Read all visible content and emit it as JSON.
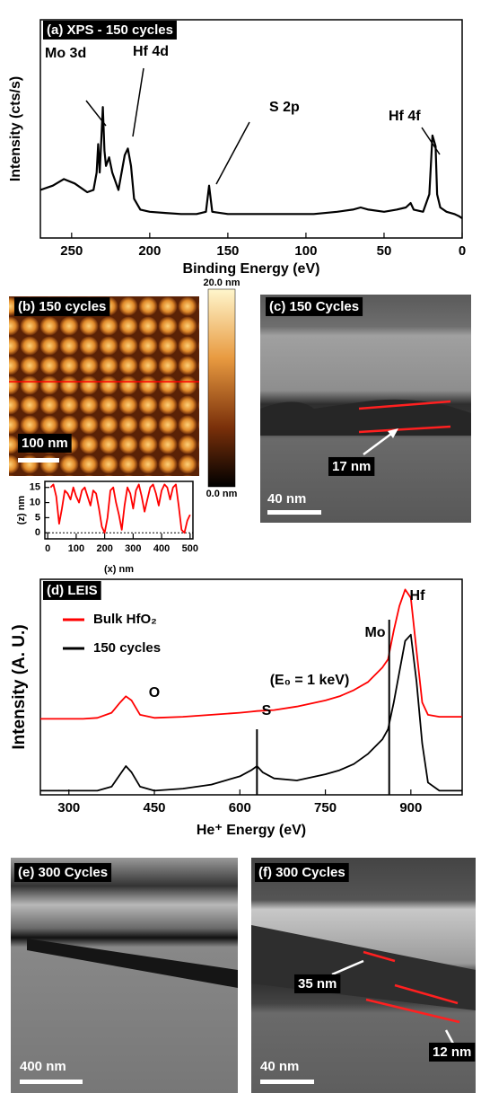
{
  "chart_data": [
    {
      "type": "line",
      "title": "(a) XPS - 150 cycles",
      "x_label": "Binding Energy (eV)",
      "y_label": "Intensity (cts/s)",
      "x": [
        270,
        262,
        255,
        248,
        240,
        236,
        234,
        233,
        232,
        231,
        230,
        229,
        228,
        226,
        224,
        220,
        216,
        214,
        212,
        210,
        206,
        200,
        190,
        180,
        170,
        164,
        162,
        160,
        150,
        130,
        110,
        95,
        80,
        70,
        65,
        60,
        50,
        42,
        36,
        33,
        31,
        25,
        21,
        19,
        17,
        16,
        14,
        10,
        5,
        2,
        0
      ],
      "values": [
        22,
        24,
        27,
        25,
        21,
        22,
        30,
        43,
        30,
        45,
        60,
        40,
        33,
        37,
        30,
        22,
        38,
        41,
        33,
        18,
        13,
        12,
        11.5,
        11,
        11,
        12,
        24,
        12,
        11,
        11,
        11,
        11,
        12,
        13,
        14,
        13,
        12,
        13,
        14,
        16,
        13,
        12,
        20,
        47,
        42,
        20,
        14,
        12,
        11,
        10,
        9
      ],
      "color": "#000000",
      "xlim": [
        270,
        0
      ],
      "ylim": [
        0,
        100
      ],
      "xticks": [
        250,
        200,
        150,
        100,
        50,
        0
      ],
      "annotations": [
        "Mo 3d",
        "Hf 4d",
        "S 2p",
        "Hf 4f"
      ]
    },
    {
      "type": "line",
      "x_label": "(x) nm",
      "y_label": "(z) nm",
      "x": [
        10,
        20,
        30,
        40,
        50,
        60,
        70,
        80,
        90,
        100,
        110,
        120,
        130,
        140,
        150,
        160,
        170,
        180,
        190,
        200,
        210,
        220,
        230,
        240,
        250,
        260,
        270,
        280,
        290,
        300,
        310,
        320,
        330,
        340,
        350,
        360,
        370,
        380,
        390,
        400,
        410,
        420,
        430,
        440,
        450,
        460,
        470,
        480,
        490,
        500
      ],
      "values": [
        15,
        16,
        12,
        3,
        8,
        14,
        13,
        11,
        15,
        12,
        10,
        14,
        15,
        12,
        9,
        14,
        13,
        8,
        2,
        0,
        5,
        14,
        15,
        10,
        6,
        1,
        9,
        15,
        13,
        8,
        14,
        16,
        12,
        7,
        11,
        15,
        16,
        13,
        9,
        14,
        16,
        15,
        11,
        15,
        16,
        9,
        1,
        0,
        4,
        6
      ],
      "color": "#ff0000",
      "xlim": [
        -10,
        510
      ],
      "ylim": [
        -2,
        17
      ],
      "xticks": [
        0,
        100,
        200,
        300,
        400,
        500
      ],
      "yticks": [
        0,
        5,
        10,
        15
      ]
    },
    {
      "type": "line",
      "title": "(d) LEIS",
      "x_label": "He⁺ Energy (eV)",
      "y_label": "Intensity (A. U.)",
      "x": [
        250,
        275,
        300,
        325,
        350,
        375,
        390,
        400,
        410,
        425,
        450,
        500,
        550,
        600,
        620,
        630,
        640,
        660,
        700,
        750,
        775,
        800,
        825,
        850,
        860,
        870,
        880,
        890,
        900,
        910,
        920,
        930,
        950,
        975,
        990
      ],
      "series": [
        {
          "name": "Bulk HfO₂",
          "color": "#ff0000",
          "values": [
            37,
            37,
            37,
            37,
            37.5,
            40,
            45,
            48,
            46,
            39,
            37.5,
            38,
            39,
            40,
            40.5,
            40.8,
            41,
            41.3,
            43,
            46,
            48,
            51,
            55,
            62,
            66,
            80,
            92,
            100,
            96,
            70,
            45,
            39,
            38,
            38,
            38
          ]
        },
        {
          "name": "150 cycles",
          "color": "#000000",
          "values": [
            2,
            2,
            2,
            2,
            2,
            4,
            10,
            14,
            11,
            4,
            2,
            3,
            5,
            9,
            12,
            14,
            11,
            8,
            7,
            10,
            12,
            15,
            20,
            27,
            32,
            45,
            60,
            75,
            78,
            55,
            25,
            6,
            2,
            2,
            2
          ]
        }
      ],
      "xlim": [
        250,
        990
      ],
      "ylim": [
        0,
        105
      ],
      "xticks": [
        300,
        450,
        600,
        750,
        900
      ],
      "legend": "upper left",
      "vlines": [
        630,
        862
      ],
      "annotations": [
        "O",
        "S",
        "Mo",
        "Hf",
        "(E₀ = 1 keV)"
      ]
    }
  ],
  "images": [
    {
      "label": "(b) 150 cycles",
      "scale_bar": "100 nm",
      "colorbar": [
        "20.0 nm",
        "0.0 nm"
      ]
    },
    {
      "label": "(c) 150 Cycles",
      "annotations": [
        "17 nm"
      ],
      "scale_bar": "40 nm"
    },
    {
      "label": "(e) 300 Cycles",
      "scale_bar": "400 nm"
    },
    {
      "label": "(f) 300 Cycles",
      "annotations": [
        "35 nm",
        "12 nm"
      ],
      "scale_bar": "40 nm"
    }
  ]
}
